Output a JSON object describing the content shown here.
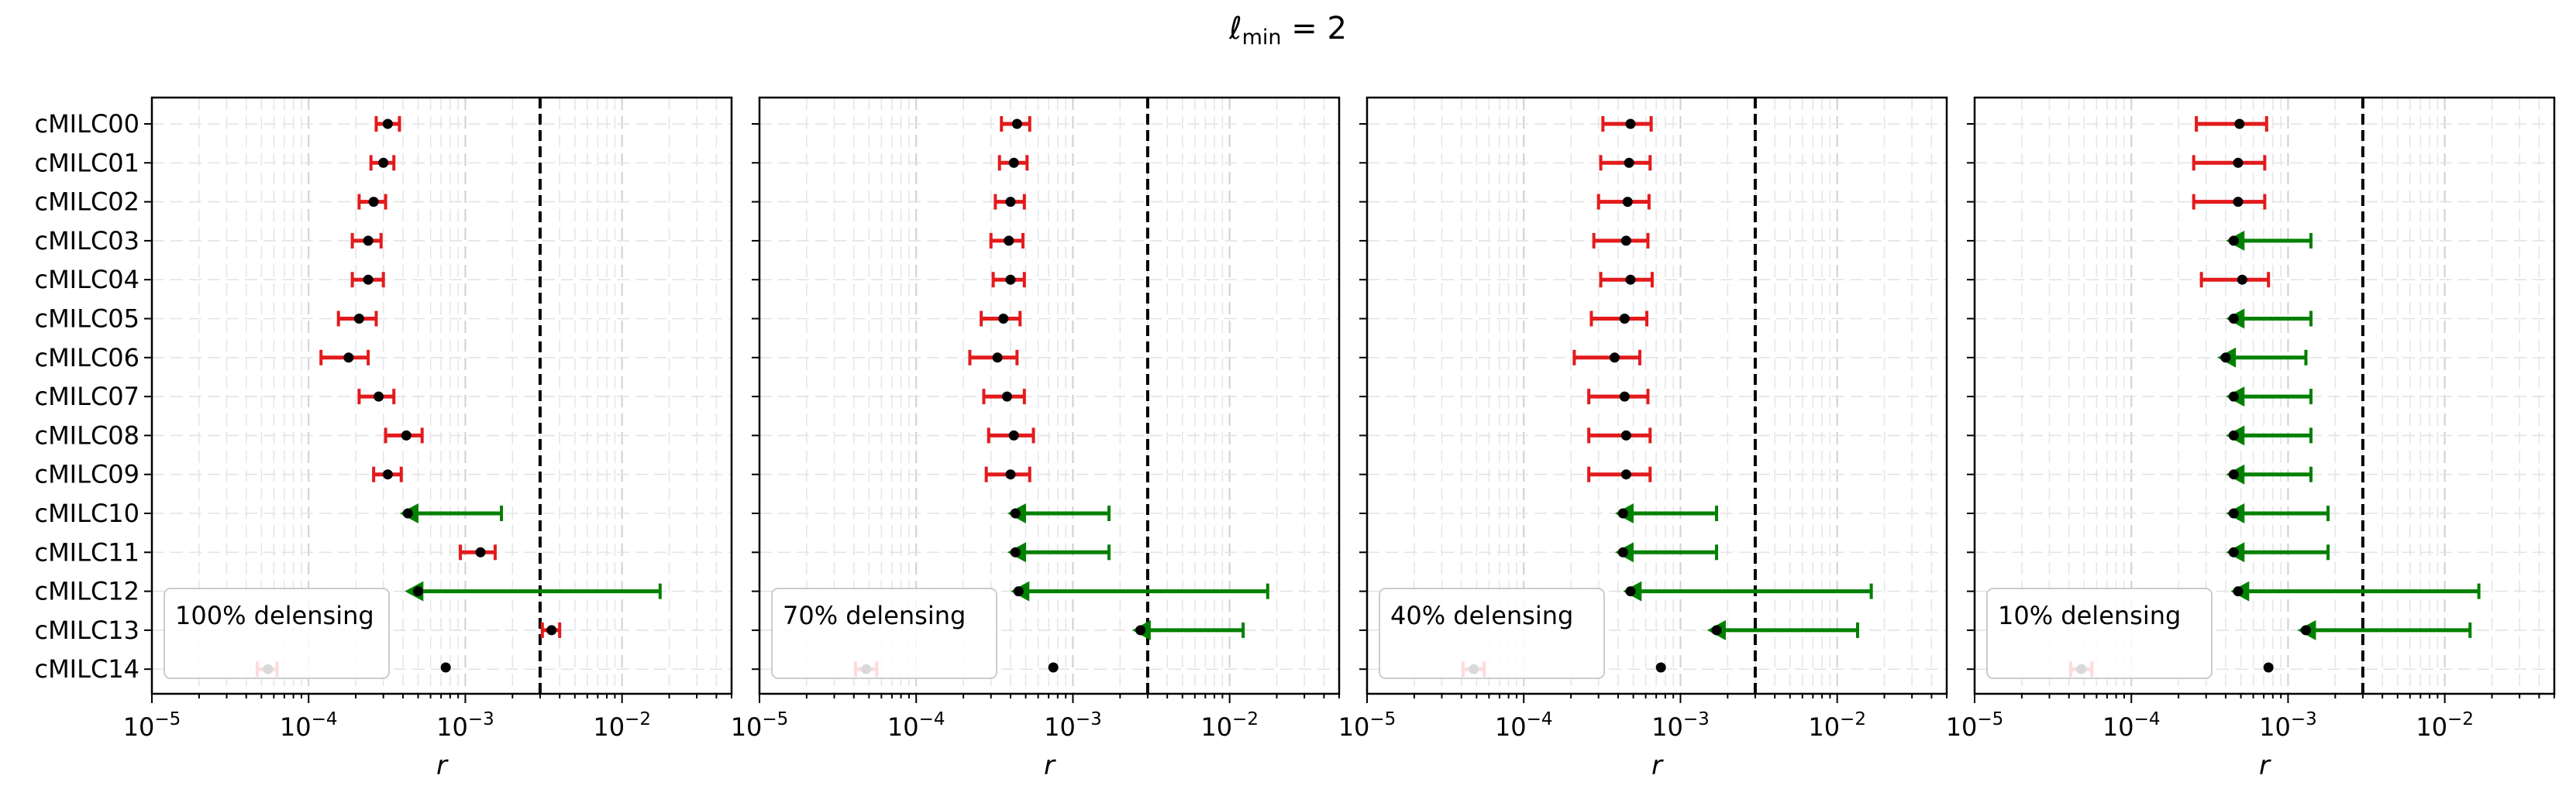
{
  "title": {
    "ell": "ℓ",
    "sub": "min",
    "rest": " = 2"
  },
  "colors": {
    "detection": "#e31a1c",
    "upper_limit": "#008000",
    "point": "#000000",
    "reference_line": "#000000"
  },
  "chart_data": [
    {
      "type": "scatter",
      "panel_label": "100% delensing",
      "xlabel": "r",
      "xscale": "log",
      "xlim": [
        1e-05,
        0.05
      ],
      "xtick_labels": [
        "10^-5",
        "10^-4",
        "10^-3",
        "10^-2"
      ],
      "reference_line_x": 0.003,
      "categories": [
        "cMILC00",
        "cMILC01",
        "cMILC02",
        "cMILC03",
        "cMILC04",
        "cMILC05",
        "cMILC06",
        "cMILC07",
        "cMILC08",
        "cMILC09",
        "cMILC10",
        "cMILC11",
        "cMILC12",
        "cMILC13",
        "cMILC14"
      ],
      "points": [
        {
          "x": 0.00032,
          "lo": 0.00027,
          "hi": 0.00038,
          "kind": "error"
        },
        {
          "x": 0.0003,
          "lo": 0.00025,
          "hi": 0.00035,
          "kind": "error"
        },
        {
          "x": 0.00026,
          "lo": 0.00021,
          "hi": 0.00031,
          "kind": "error"
        },
        {
          "x": 0.00024,
          "lo": 0.00019,
          "hi": 0.00029,
          "kind": "error"
        },
        {
          "x": 0.00024,
          "lo": 0.00019,
          "hi": 0.0003,
          "kind": "error"
        },
        {
          "x": 0.00021,
          "lo": 0.000155,
          "hi": 0.00027,
          "kind": "error"
        },
        {
          "x": 0.00018,
          "lo": 0.00012,
          "hi": 0.00024,
          "kind": "error"
        },
        {
          "x": 0.00028,
          "lo": 0.00021,
          "hi": 0.00035,
          "kind": "error"
        },
        {
          "x": 0.00042,
          "lo": 0.00031,
          "hi": 0.00053,
          "kind": "error"
        },
        {
          "x": 0.00032,
          "lo": 0.00026,
          "hi": 0.00039,
          "kind": "error"
        },
        {
          "x": 0.00043,
          "lo": 0.0004,
          "hi": 0.0017,
          "kind": "limit"
        },
        {
          "x": 0.00125,
          "lo": 0.00093,
          "hi": 0.00155,
          "kind": "error"
        },
        {
          "x": 0.0005,
          "lo": 0.00043,
          "hi": 0.0175,
          "kind": "limit"
        },
        {
          "x": 0.00355,
          "lo": 0.0031,
          "hi": 0.004,
          "kind": "error"
        },
        {
          "x": 5.5e-05,
          "lo": 4.7e-05,
          "hi": 6.3e-05,
          "kind": "error"
        },
        {
          "x": 0.00075,
          "kind": "point"
        }
      ]
    },
    {
      "type": "scatter",
      "panel_label": "70% delensing",
      "xlabel": "r",
      "xscale": "log",
      "xlim": [
        1e-05,
        0.05
      ],
      "xtick_labels": [
        "10^-5",
        "10^-4",
        "10^-3",
        "10^-2"
      ],
      "reference_line_x": 0.003,
      "categories": [],
      "points": [
        {
          "x": 0.00044,
          "lo": 0.00035,
          "hi": 0.00053,
          "kind": "error"
        },
        {
          "x": 0.00042,
          "lo": 0.00034,
          "hi": 0.00051,
          "kind": "error"
        },
        {
          "x": 0.0004,
          "lo": 0.00032,
          "hi": 0.00049,
          "kind": "error"
        },
        {
          "x": 0.00039,
          "lo": 0.0003,
          "hi": 0.00048,
          "kind": "error"
        },
        {
          "x": 0.0004,
          "lo": 0.00031,
          "hi": 0.00049,
          "kind": "error"
        },
        {
          "x": 0.00036,
          "lo": 0.00026,
          "hi": 0.00046,
          "kind": "error"
        },
        {
          "x": 0.00033,
          "lo": 0.00022,
          "hi": 0.00044,
          "kind": "error"
        },
        {
          "x": 0.00038,
          "lo": 0.00027,
          "hi": 0.00049,
          "kind": "error"
        },
        {
          "x": 0.00042,
          "lo": 0.00029,
          "hi": 0.00056,
          "kind": "error"
        },
        {
          "x": 0.0004,
          "lo": 0.00028,
          "hi": 0.00053,
          "kind": "error"
        },
        {
          "x": 0.00043,
          "lo": 0.0004,
          "hi": 0.0017,
          "kind": "limit"
        },
        {
          "x": 0.00043,
          "lo": 0.0004,
          "hi": 0.0017,
          "kind": "limit"
        },
        {
          "x": 0.00045,
          "lo": 0.00042,
          "hi": 0.0175,
          "kind": "limit"
        },
        {
          "x": 0.0027,
          "lo": 0.0025,
          "hi": 0.0122,
          "kind": "limit"
        },
        {
          "x": 4.8e-05,
          "lo": 4.1e-05,
          "hi": 5.6e-05,
          "kind": "error"
        },
        {
          "x": 0.00075,
          "kind": "point"
        }
      ]
    },
    {
      "type": "scatter",
      "panel_label": "40% delensing",
      "xlabel": "r",
      "xscale": "log",
      "xlim": [
        1e-05,
        0.05
      ],
      "xtick_labels": [
        "10^-5",
        "10^-4",
        "10^-3",
        "10^-2"
      ],
      "reference_line_x": 0.003,
      "categories": [],
      "points": [
        {
          "x": 0.00048,
          "lo": 0.00032,
          "hi": 0.00065,
          "kind": "error"
        },
        {
          "x": 0.00047,
          "lo": 0.00031,
          "hi": 0.00064,
          "kind": "error"
        },
        {
          "x": 0.00046,
          "lo": 0.0003,
          "hi": 0.00063,
          "kind": "error"
        },
        {
          "x": 0.00045,
          "lo": 0.00028,
          "hi": 0.00062,
          "kind": "error"
        },
        {
          "x": 0.00048,
          "lo": 0.00031,
          "hi": 0.00066,
          "kind": "error"
        },
        {
          "x": 0.00044,
          "lo": 0.00027,
          "hi": 0.00061,
          "kind": "error"
        },
        {
          "x": 0.00038,
          "lo": 0.00021,
          "hi": 0.00055,
          "kind": "error"
        },
        {
          "x": 0.00044,
          "lo": 0.00026,
          "hi": 0.00062,
          "kind": "error"
        },
        {
          "x": 0.00045,
          "lo": 0.00026,
          "hi": 0.00064,
          "kind": "error"
        },
        {
          "x": 0.00045,
          "lo": 0.00026,
          "hi": 0.00064,
          "kind": "error"
        },
        {
          "x": 0.00043,
          "lo": 0.0004,
          "hi": 0.0017,
          "kind": "limit"
        },
        {
          "x": 0.00043,
          "lo": 0.0004,
          "hi": 0.0017,
          "kind": "limit"
        },
        {
          "x": 0.00048,
          "lo": 0.00045,
          "hi": 0.0165,
          "kind": "limit"
        },
        {
          "x": 0.0017,
          "lo": 0.00155,
          "hi": 0.0135,
          "kind": "limit"
        },
        {
          "x": 4.8e-05,
          "lo": 4.1e-05,
          "hi": 5.6e-05,
          "kind": "error"
        },
        {
          "x": 0.00075,
          "kind": "point"
        }
      ]
    },
    {
      "type": "scatter",
      "panel_label": "10% delensing",
      "xlabel": "r",
      "xscale": "log",
      "xlim": [
        1e-05,
        0.05
      ],
      "xtick_labels": [
        "10^-5",
        "10^-4",
        "10^-3",
        "10^-2"
      ],
      "reference_line_x": 0.003,
      "categories": [],
      "points": [
        {
          "x": 0.00049,
          "lo": 0.00026,
          "hi": 0.00073,
          "kind": "error"
        },
        {
          "x": 0.00048,
          "lo": 0.00025,
          "hi": 0.00071,
          "kind": "error"
        },
        {
          "x": 0.00048,
          "lo": 0.00025,
          "hi": 0.00071,
          "kind": "error"
        },
        {
          "x": 0.00045,
          "lo": 0.00042,
          "hi": 0.0014,
          "kind": "limit"
        },
        {
          "x": 0.00051,
          "lo": 0.00028,
          "hi": 0.00075,
          "kind": "error"
        },
        {
          "x": 0.00045,
          "lo": 0.00042,
          "hi": 0.0014,
          "kind": "limit"
        },
        {
          "x": 0.0004,
          "lo": 0.00037,
          "hi": 0.0013,
          "kind": "limit"
        },
        {
          "x": 0.00045,
          "lo": 0.00042,
          "hi": 0.0014,
          "kind": "limit"
        },
        {
          "x": 0.00045,
          "lo": 0.00042,
          "hi": 0.0014,
          "kind": "limit"
        },
        {
          "x": 0.00045,
          "lo": 0.00042,
          "hi": 0.0014,
          "kind": "limit"
        },
        {
          "x": 0.00045,
          "lo": 0.00042,
          "hi": 0.0018,
          "kind": "limit"
        },
        {
          "x": 0.00045,
          "lo": 0.00042,
          "hi": 0.0018,
          "kind": "limit"
        },
        {
          "x": 0.00048,
          "lo": 0.00045,
          "hi": 0.0165,
          "kind": "limit"
        },
        {
          "x": 0.0013,
          "lo": 0.0012,
          "hi": 0.0145,
          "kind": "limit"
        },
        {
          "x": 4.8e-05,
          "lo": 4.1e-05,
          "hi": 5.6e-05,
          "kind": "error"
        },
        {
          "x": 0.00075,
          "kind": "point"
        }
      ]
    }
  ]
}
